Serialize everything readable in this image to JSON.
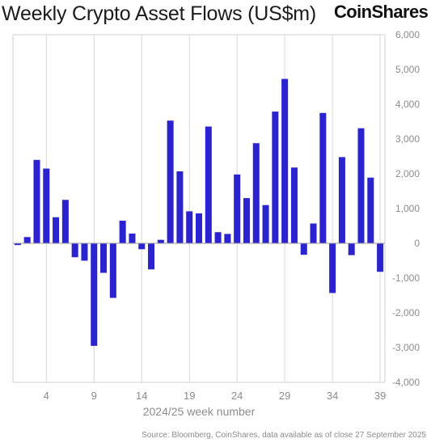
{
  "header": {
    "title": "Weekly Crypto Asset Flows (US$m)",
    "brand": "CoinShares"
  },
  "footer": {
    "source": "Source: Bloomberg, CoinShares, data available as of close 27 September 2025"
  },
  "chart_data": {
    "type": "bar",
    "title": "Weekly Crypto Asset Flows (US$m)",
    "xlabel": "2024/25 week number",
    "ylabel": "",
    "ylim": [
      -4000,
      6000
    ],
    "yticks": [
      6000,
      5000,
      4000,
      3000,
      2000,
      1000,
      0,
      -1000,
      -2000,
      -3000,
      -4000
    ],
    "ytick_labels": [
      "6,000",
      "5,000",
      "4,000",
      "3,000",
      "2,000",
      "1,000",
      "0",
      "-1,000",
      "-2,000",
      "-3,000",
      "-4,000"
    ],
    "xtick_labels": [
      "4",
      "9",
      "14",
      "19",
      "24",
      "29",
      "34",
      "39"
    ],
    "categories": [
      1,
      2,
      3,
      4,
      5,
      6,
      7,
      8,
      9,
      10,
      11,
      12,
      13,
      14,
      15,
      16,
      17,
      18,
      19,
      20,
      21,
      22,
      23,
      24,
      25,
      26,
      27,
      28,
      29,
      30,
      31,
      32,
      33,
      34,
      35,
      36,
      37,
      38,
      39
    ],
    "values": [
      -50,
      180,
      2400,
      2150,
      750,
      1250,
      -400,
      -500,
      -2950,
      -850,
      -1570,
      650,
      280,
      -170,
      -750,
      100,
      3530,
      2070,
      920,
      860,
      3360,
      320,
      270,
      1980,
      1300,
      2880,
      1100,
      3790,
      4730,
      2180,
      -330,
      570,
      3750,
      -1430,
      2480,
      -340,
      3310,
      1890,
      -820
    ],
    "bar_color": "#2b22d0",
    "grid": "vertical",
    "y_axis_side": "right",
    "legend": "none"
  }
}
